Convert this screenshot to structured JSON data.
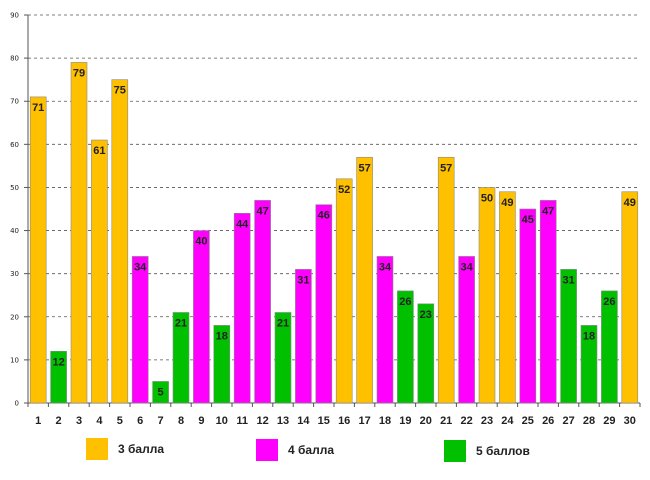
{
  "chart_data": {
    "type": "bar",
    "title": "",
    "xlabel": "",
    "ylabel": "",
    "ylim": [
      0,
      90
    ],
    "yticks": [
      0,
      10,
      20,
      30,
      40,
      50,
      60,
      70,
      80,
      90
    ],
    "grid": "horizontal-dashed",
    "categories": [
      "1",
      "2",
      "3",
      "4",
      "5",
      "6",
      "7",
      "8",
      "9",
      "10",
      "11",
      "12",
      "13",
      "14",
      "15",
      "16",
      "17",
      "18",
      "19",
      "20",
      "21",
      "22",
      "23",
      "24",
      "25",
      "26",
      "27",
      "28",
      "29",
      "30"
    ],
    "values": [
      71,
      12,
      79,
      61,
      75,
      34,
      5,
      21,
      40,
      18,
      44,
      47,
      21,
      31,
      46,
      52,
      57,
      34,
      26,
      23,
      57,
      34,
      50,
      49,
      45,
      47,
      31,
      18,
      26,
      49
    ],
    "groups": [
      "3 балла",
      "5 баллов",
      "3 балла",
      "3 балла",
      "3 балла",
      "4 балла",
      "5 баллов",
      "5 баллов",
      "4 балла",
      "5 баллов",
      "4 балла",
      "4 балла",
      "5 баллов",
      "4 балла",
      "4 балла",
      "3 балла",
      "3 балла",
      "4 балла",
      "5 баллов",
      "5 баллов",
      "3 балла",
      "4 балла",
      "3 балла",
      "3 балла",
      "4 балла",
      "4 балла",
      "5 баллов",
      "5 баллов",
      "5 баллов",
      "3 балла"
    ],
    "legend": [
      {
        "label": "3 балла",
        "color": "#FFC000"
      },
      {
        "label": "4 балла",
        "color": "#FF00FF"
      },
      {
        "label": "5 баллов",
        "color": "#00C000"
      }
    ],
    "legend_position": "bottom"
  }
}
